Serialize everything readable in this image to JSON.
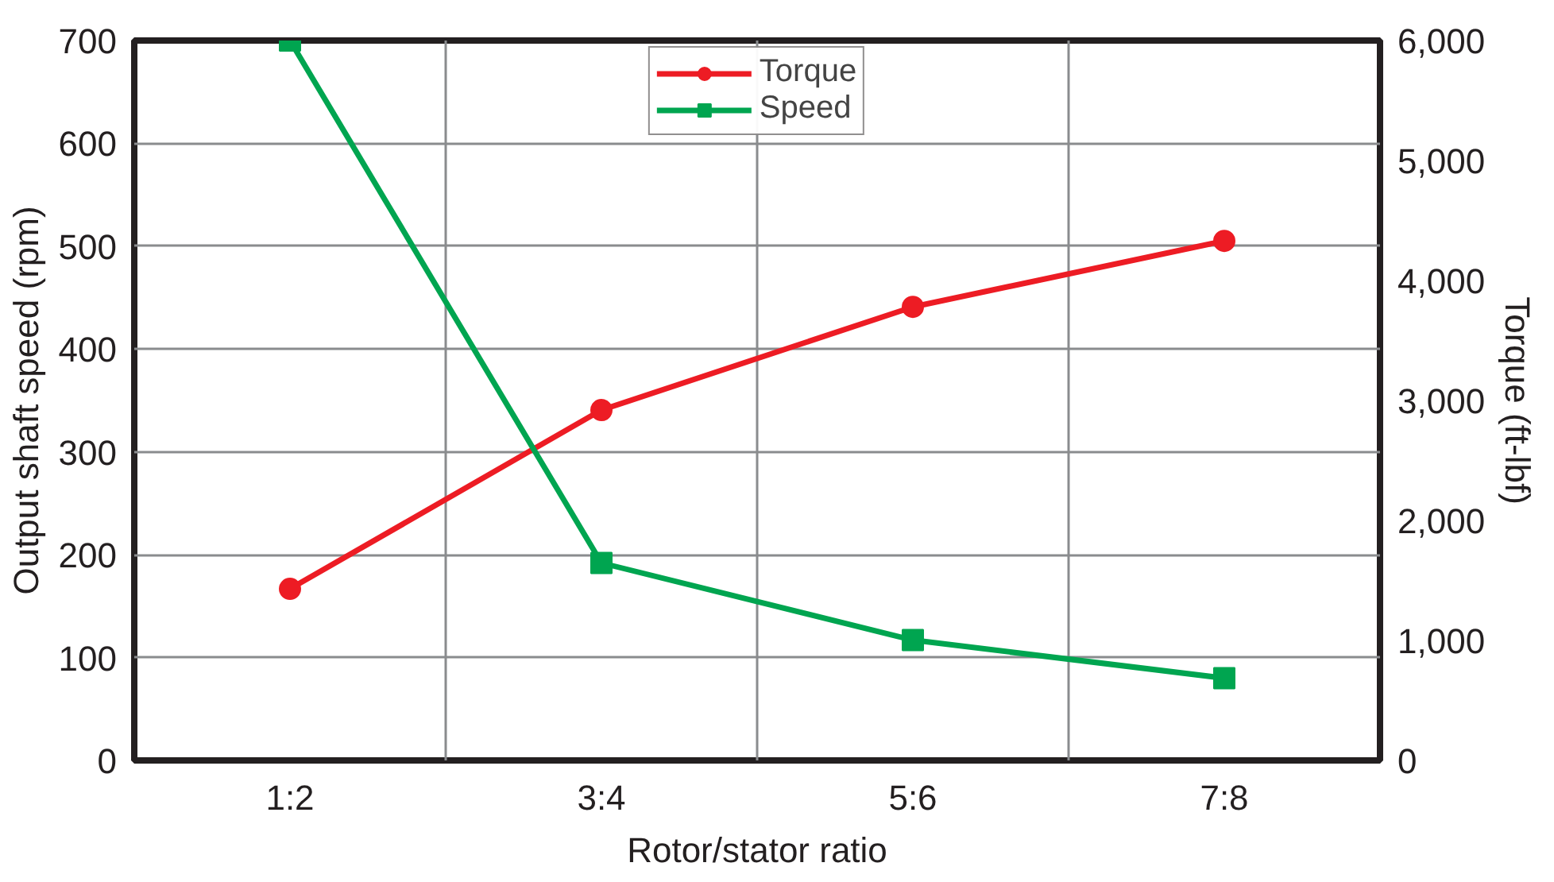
{
  "chart_data": {
    "type": "line",
    "xlabel": "Rotor/stator ratio",
    "ylabel": "Output shaft speed (rpm)",
    "y2label": "Torque (ft-lbf)",
    "categories": [
      "1:2",
      "3:4",
      "5:6",
      "7:8"
    ],
    "series": [
      {
        "name": "Torque",
        "color": "#ed1c24",
        "values": [
          1430,
          2920,
          3780,
          4330
        ],
        "axis": "y2",
        "marker": "circle"
      },
      {
        "name": "Speed",
        "color": "#00a550",
        "values": [
          700,
          192,
          117,
          80
        ],
        "marker": "square"
      }
    ],
    "ylim": [
      0,
      700
    ],
    "yticks": [
      0,
      100,
      200,
      300,
      400,
      500,
      600,
      700
    ],
    "y2lim": [
      0,
      6000
    ],
    "y2ticks": [
      {
        "value": 0,
        "label": "0"
      },
      {
        "value": 1000,
        "label": "1,000"
      },
      {
        "value": 2000,
        "label": "2,000"
      },
      {
        "value": 3000,
        "label": "3,000"
      },
      {
        "value": 4000,
        "label": "4,000"
      },
      {
        "value": 5000,
        "label": "5,000"
      },
      {
        "value": 6000,
        "label": "6,000"
      }
    ],
    "grid": true,
    "legend": "top",
    "line_style": "solid"
  }
}
